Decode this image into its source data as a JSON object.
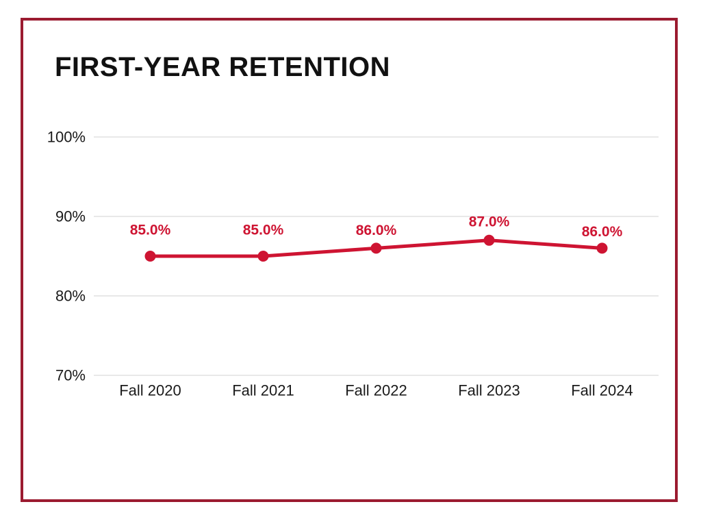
{
  "page": {
    "background_color": "#ffffff",
    "frame_color": "#9B1B30"
  },
  "chart_data": {
    "type": "line",
    "title": "FIRST-YEAR RETENTION",
    "categories": [
      "Fall 2020",
      "Fall 2021",
      "Fall 2022",
      "Fall 2023",
      "Fall 2024"
    ],
    "series": [
      {
        "name": "First-year retention",
        "values": [
          85.0,
          85.0,
          86.0,
          87.0,
          86.0
        ]
      }
    ],
    "data_labels": [
      "85.0%",
      "85.0%",
      "86.0%",
      "87.0%",
      "86.0%"
    ],
    "y_ticks": [
      {
        "label": "100%",
        "value": 100
      },
      {
        "label": "90%",
        "value": 90
      },
      {
        "label": "80%",
        "value": 80
      },
      {
        "label": "70%",
        "value": 70
      }
    ],
    "ylim": [
      70,
      100
    ],
    "xlabel": "",
    "ylabel": "",
    "grid": "horizontal",
    "legend": "none",
    "line_color": "#CE1432",
    "label_color": "#CE1432",
    "grid_color": "#DBDBDB",
    "tick_color": "#1a1a1a",
    "title_color": "#111111"
  }
}
